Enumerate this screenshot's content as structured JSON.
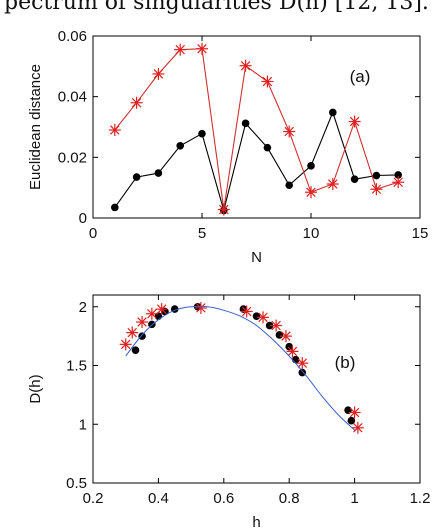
{
  "header": {
    "text": "pectrum of singularities D(h) [12, 13]."
  },
  "chart_data": [
    {
      "type": "line",
      "panel_label": "(a)",
      "xlabel": "N",
      "ylabel": "Euclidean distance",
      "xlim": [
        0,
        15
      ],
      "ylim": [
        0,
        0.06
      ],
      "xticks": [
        0,
        5,
        10,
        15
      ],
      "yticks": [
        0,
        0.02,
        0.04,
        0.06
      ],
      "xtick_labels": [
        "0",
        "5",
        "10",
        "15"
      ],
      "ytick_labels": [
        "0",
        "0.02",
        "0.04",
        "0.06"
      ],
      "grid": false,
      "series": [
        {
          "color": "#000000",
          "line_color": "#000000",
          "marker": "dot",
          "x": [
            1,
            2,
            3,
            4,
            5,
            6,
            7,
            8,
            9,
            10,
            11,
            12,
            13,
            14
          ],
          "y": [
            0.0035,
            0.0135,
            0.0148,
            0.0238,
            0.0278,
            0.0025,
            0.0312,
            0.0232,
            0.0108,
            0.0172,
            0.0348,
            0.0128,
            0.014,
            0.0142
          ]
        },
        {
          "color": "#e02020",
          "line_color": "#d03030",
          "marker": "star",
          "x": [
            1,
            2,
            3,
            4,
            5,
            6,
            7,
            8,
            9,
            10,
            11,
            12,
            13,
            14
          ],
          "y": [
            0.029,
            0.038,
            0.0475,
            0.0555,
            0.0558,
            0.0028,
            0.0502,
            0.045,
            0.0285,
            0.0085,
            0.0112,
            0.0318,
            0.0095,
            0.0118
          ]
        }
      ]
    },
    {
      "type": "scatter",
      "panel_label": "(b)",
      "xlabel": "h",
      "ylabel": "D(h)",
      "xlim": [
        0.2,
        1.2
      ],
      "ylim": [
        0.5,
        2.1
      ],
      "xticks": [
        0.2,
        0.4,
        0.6,
        0.8,
        1,
        1.2
      ],
      "yticks": [
        0.5,
        1,
        1.5,
        2
      ],
      "xtick_labels": [
        "0.2",
        "0.4",
        "0.6",
        "0.8",
        "1",
        "1.2"
      ],
      "ytick_labels": [
        "0.5",
        "1",
        "1.5",
        "2"
      ],
      "grid": false,
      "series": [
        {
          "color": "#000000",
          "marker": "dot",
          "x": [
            0.33,
            0.35,
            0.38,
            0.4,
            0.42,
            0.45,
            0.52,
            0.66,
            0.7,
            0.74,
            0.77,
            0.8,
            0.82,
            0.84,
            0.98,
            0.99
          ],
          "y": [
            1.63,
            1.75,
            1.85,
            1.92,
            1.96,
            1.98,
            2.0,
            1.98,
            1.92,
            1.84,
            1.76,
            1.66,
            1.55,
            1.44,
            1.12,
            1.03
          ]
        },
        {
          "color": "#e02020",
          "marker": "star",
          "x": [
            0.3,
            0.32,
            0.35,
            0.38,
            0.41,
            0.53,
            0.67,
            0.72,
            0.76,
            0.79,
            0.81,
            0.84,
            1.0,
            1.01
          ],
          "y": [
            1.68,
            1.78,
            1.87,
            1.94,
            1.98,
            1.99,
            1.96,
            1.91,
            1.84,
            1.75,
            1.62,
            1.52,
            1.1,
            0.97
          ]
        },
        {
          "color": "#3a5fc8",
          "marker": "none",
          "line_color": "#3a5fc8",
          "x": [
            0.3,
            0.35,
            0.4,
            0.45,
            0.5,
            0.55,
            0.6,
            0.65,
            0.7,
            0.75,
            0.8,
            0.85,
            0.9,
            0.95,
            1.0
          ],
          "y": [
            1.58,
            1.76,
            1.89,
            1.97,
            2.0,
            2.0,
            1.97,
            1.92,
            1.84,
            1.72,
            1.58,
            1.42,
            1.24,
            1.08,
            0.95
          ]
        }
      ]
    }
  ]
}
